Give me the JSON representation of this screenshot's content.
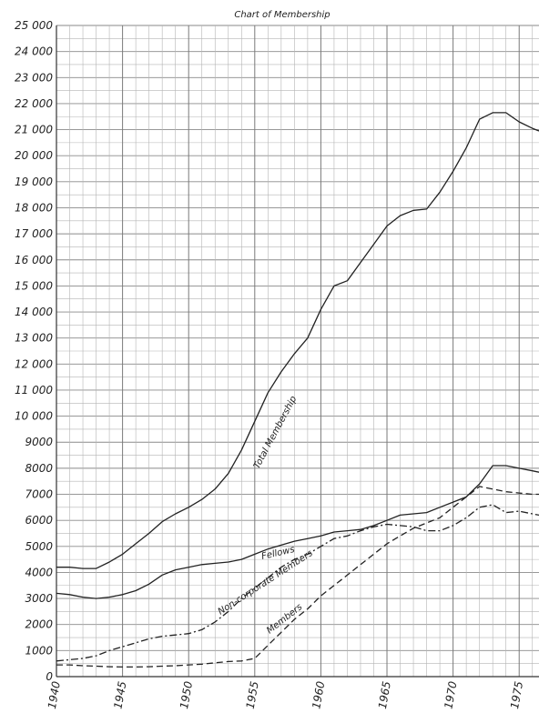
{
  "chart_data": {
    "type": "line",
    "title": "Chart of Membership",
    "xlabel": "",
    "ylabel": "",
    "xlim": [
      1940,
      1976.5
    ],
    "ylim": [
      0,
      25000
    ],
    "grid": true,
    "yticks": [
      {
        "value": 25000,
        "label": "25 000"
      },
      {
        "value": 24000,
        "label": "24 000"
      },
      {
        "value": 23000,
        "label": "23 000"
      },
      {
        "value": 22000,
        "label": "22 000"
      },
      {
        "value": 21000,
        "label": "21 000"
      },
      {
        "value": 20000,
        "label": "20 000"
      },
      {
        "value": 19000,
        "label": "19 000"
      },
      {
        "value": 18000,
        "label": "18 000"
      },
      {
        "value": 17000,
        "label": "17 000"
      },
      {
        "value": 16000,
        "label": "16 000"
      },
      {
        "value": 15000,
        "label": "15 000"
      },
      {
        "value": 14000,
        "label": "14 000"
      },
      {
        "value": 13000,
        "label": "13 000"
      },
      {
        "value": 12000,
        "label": "12 000"
      },
      {
        "value": 11000,
        "label": "11 000"
      },
      {
        "value": 10000,
        "label": "10 000"
      },
      {
        "value": 9000,
        "label": "9000"
      },
      {
        "value": 8000,
        "label": "8000"
      },
      {
        "value": 7000,
        "label": "7000"
      },
      {
        "value": 6000,
        "label": "6000"
      },
      {
        "value": 5000,
        "label": "5000"
      },
      {
        "value": 4000,
        "label": "4000"
      },
      {
        "value": 3000,
        "label": "3000"
      },
      {
        "value": 2000,
        "label": "2000"
      },
      {
        "value": 1000,
        "label": "1000"
      },
      {
        "value": 0,
        "label": "0"
      }
    ],
    "xticks": [
      {
        "value": 1940,
        "label": "1940"
      },
      {
        "value": 1945,
        "label": "1945"
      },
      {
        "value": 1950,
        "label": "1950"
      },
      {
        "value": 1955,
        "label": "1955"
      },
      {
        "value": 1960,
        "label": "1960"
      },
      {
        "value": 1965,
        "label": "1965"
      },
      {
        "value": 1970,
        "label": "1970"
      },
      {
        "value": 1975,
        "label": "1975"
      }
    ],
    "series": [
      {
        "name": "Total Membership",
        "style": "solid",
        "color": "#222222",
        "x": [
          1940,
          1941,
          1942,
          1943,
          1944,
          1945,
          1946,
          1947,
          1948,
          1949,
          1950,
          1951,
          1952,
          1953,
          1954,
          1955,
          1956,
          1957,
          1958,
          1959,
          1960,
          1961,
          1962,
          1963,
          1964,
          1965,
          1966,
          1967,
          1968,
          1969,
          1970,
          1971,
          1972,
          1973,
          1974,
          1975,
          1976,
          1976.5
        ],
        "values": [
          4200,
          4200,
          4150,
          4150,
          4400,
          4700,
          5100,
          5500,
          5950,
          6250,
          6500,
          6800,
          7200,
          7800,
          8700,
          9800,
          10900,
          11700,
          12400,
          13000,
          14100,
          15000,
          15200,
          15900,
          16600,
          17300,
          17700,
          17900,
          17950,
          18600,
          19400,
          20300,
          21400,
          21650,
          21650,
          21300,
          21050,
          20950
        ]
      },
      {
        "name": "Fellows",
        "style": "solid",
        "color": "#222222",
        "x": [
          1940,
          1941,
          1942,
          1943,
          1944,
          1945,
          1946,
          1947,
          1948,
          1949,
          1950,
          1951,
          1952,
          1953,
          1954,
          1955,
          1956,
          1957,
          1958,
          1959,
          1960,
          1961,
          1962,
          1963,
          1964,
          1965,
          1966,
          1967,
          1968,
          1969,
          1970,
          1971,
          1972,
          1973,
          1974,
          1975,
          1976,
          1976.5
        ],
        "values": [
          3200,
          3150,
          3050,
          3000,
          3050,
          3150,
          3300,
          3550,
          3900,
          4100,
          4200,
          4300,
          4350,
          4400,
          4500,
          4700,
          4900,
          5050,
          5200,
          5300,
          5400,
          5550,
          5600,
          5650,
          5800,
          6000,
          6200,
          6250,
          6300,
          6500,
          6700,
          6900,
          7400,
          8100,
          8100,
          8000,
          7900,
          7850
        ]
      },
      {
        "name": "Non-corporate Members",
        "style": "dash-dot",
        "color": "#222222",
        "x": [
          1940,
          1941,
          1942,
          1943,
          1944,
          1945,
          1946,
          1947,
          1948,
          1949,
          1950,
          1951,
          1952,
          1953,
          1954,
          1955,
          1956,
          1957,
          1958,
          1959,
          1960,
          1961,
          1962,
          1963,
          1964,
          1965,
          1966,
          1967,
          1968,
          1969,
          1970,
          1971,
          1972,
          1973,
          1974,
          1975,
          1976,
          1976.5
        ],
        "values": [
          600,
          650,
          700,
          800,
          1000,
          1150,
          1300,
          1450,
          1550,
          1600,
          1650,
          1800,
          2100,
          2500,
          3000,
          3400,
          3800,
          4200,
          4500,
          4700,
          5000,
          5300,
          5400,
          5600,
          5750,
          5850,
          5800,
          5750,
          5600,
          5600,
          5800,
          6100,
          6500,
          6600,
          6300,
          6350,
          6250,
          6200
        ]
      },
      {
        "name": "Members",
        "style": "dashed",
        "color": "#222222",
        "x": [
          1940,
          1941,
          1942,
          1943,
          1944,
          1945,
          1946,
          1947,
          1948,
          1949,
          1950,
          1951,
          1952,
          1953,
          1954,
          1955,
          1956,
          1957,
          1958,
          1959,
          1960,
          1961,
          1962,
          1963,
          1964,
          1965,
          1966,
          1967,
          1968,
          1969,
          1970,
          1971,
          1972,
          1973,
          1974,
          1975,
          1976,
          1976.5
        ],
        "values": [
          450,
          450,
          420,
          400,
          380,
          370,
          370,
          380,
          400,
          420,
          450,
          480,
          530,
          580,
          600,
          700,
          1200,
          1700,
          2200,
          2600,
          3100,
          3500,
          3900,
          4300,
          4700,
          5100,
          5400,
          5700,
          5900,
          6100,
          6500,
          6900,
          7300,
          7200,
          7100,
          7050,
          7000,
          7000
        ]
      }
    ],
    "annotations": [
      {
        "text": "Total Membership",
        "series": "Total Membership"
      },
      {
        "text": "Fellows",
        "series": "Fellows"
      },
      {
        "text": "Non-corporate Members",
        "series": "Non-corporate Members"
      },
      {
        "text": "Members",
        "series": "Members"
      }
    ]
  }
}
